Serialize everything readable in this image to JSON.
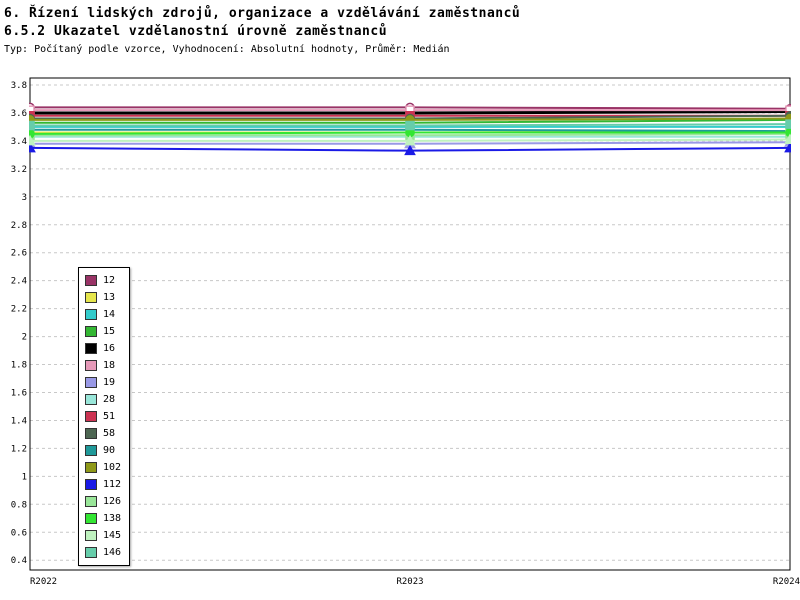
{
  "header": {
    "title_line1": "6. Řízení lidských zdrojů, organizace a vzdělávání zaměstnanců",
    "title_line2": "6.5.2 Ukazatel vzdělanostní úrovně zaměstnanců",
    "subtitle": "Typ: Počítaný podle vzorce, Vyhodnocení: Absolutní hodnoty, Průměr: Medián"
  },
  "chart_data": {
    "type": "line",
    "x": [
      "R2022",
      "R2023",
      "R2024"
    ],
    "ylim": [
      0.33,
      3.85
    ],
    "yticks": [
      3.8,
      3.6,
      3.4,
      3.2,
      3.0,
      2.8,
      2.6,
      2.4,
      2.2,
      2.0,
      1.8,
      1.6,
      1.4,
      1.2,
      1.0,
      0.8,
      0.6,
      0.4
    ],
    "grid": true,
    "grid_color": "#c8c8c8",
    "axis_color": "#000000",
    "legend_position": "inside-left",
    "series": [
      {
        "name": "12",
        "color": "#993366",
        "marker": "circle",
        "filled": false,
        "width": 2,
        "values": [
          3.64,
          3.64,
          3.63
        ]
      },
      {
        "name": "13",
        "color": "#e6e64c",
        "marker": "square",
        "filled": true,
        "width": 2,
        "values": [
          3.46,
          3.46,
          3.47
        ]
      },
      {
        "name": "14",
        "color": "#33cccc",
        "marker": "diamond",
        "filled": true,
        "width": 2,
        "values": [
          3.5,
          3.5,
          3.5
        ]
      },
      {
        "name": "15",
        "color": "#33b733",
        "marker": "circle",
        "filled": true,
        "width": 2,
        "values": [
          3.53,
          3.53,
          3.55
        ]
      },
      {
        "name": "16",
        "color": "#000000",
        "marker": "square",
        "filled": true,
        "width": 3,
        "values": [
          3.6,
          3.6,
          3.61
        ]
      },
      {
        "name": "18",
        "color": "#e699b8",
        "marker": "square",
        "filled": false,
        "width": 2,
        "values": [
          3.62,
          3.62,
          3.62
        ]
      },
      {
        "name": "19",
        "color": "#9999e6",
        "marker": "triangle",
        "filled": true,
        "width": 2,
        "values": [
          3.38,
          3.38,
          3.39
        ]
      },
      {
        "name": "28",
        "color": "#99e6d9",
        "marker": "diamond",
        "filled": true,
        "width": 2,
        "values": [
          3.43,
          3.43,
          3.43
        ]
      },
      {
        "name": "51",
        "color": "#cc3352",
        "marker": "square",
        "filled": true,
        "width": 2,
        "values": [
          3.58,
          3.58,
          3.58
        ]
      },
      {
        "name": "58",
        "color": "#4d6652",
        "marker": "circle",
        "filled": true,
        "width": 2,
        "values": [
          3.56,
          3.56,
          3.58
        ]
      },
      {
        "name": "90",
        "color": "#1f9999",
        "marker": "diamond",
        "filled": true,
        "width": 2,
        "values": [
          3.48,
          3.48,
          3.47
        ]
      },
      {
        "name": "102",
        "color": "#8f9919",
        "marker": "circle",
        "filled": true,
        "width": 2,
        "values": [
          3.55,
          3.55,
          3.56
        ]
      },
      {
        "name": "112",
        "color": "#1a1ae6",
        "marker": "triangle",
        "filled": true,
        "width": 2,
        "values": [
          3.35,
          3.33,
          3.35
        ]
      },
      {
        "name": "126",
        "color": "#99e699",
        "marker": "square",
        "filled": true,
        "width": 2,
        "values": [
          3.44,
          3.44,
          3.45
        ]
      },
      {
        "name": "138",
        "color": "#33e633",
        "marker": "circle",
        "filled": true,
        "width": 2,
        "values": [
          3.45,
          3.46,
          3.46
        ]
      },
      {
        "name": "145",
        "color": "#bff2bf",
        "marker": "triangle",
        "filled": true,
        "width": 2,
        "values": [
          3.4,
          3.4,
          3.41
        ]
      },
      {
        "name": "146",
        "color": "#66cdaa",
        "marker": "square",
        "filled": true,
        "width": 2,
        "values": [
          3.51,
          3.51,
          3.52
        ]
      }
    ]
  }
}
